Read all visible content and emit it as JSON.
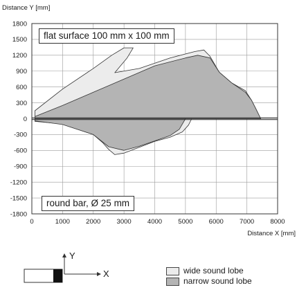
{
  "chart_data": {
    "type": "area",
    "ylabel": "Distance Y [mm]",
    "xlabel": "Distance X [mm]",
    "xlim": [
      0,
      8000
    ],
    "ylim": [
      -1800,
      1800
    ],
    "x_ticks": [
      0,
      1000,
      2000,
      3000,
      4000,
      5000,
      6000,
      7000,
      8000
    ],
    "y_ticks": [
      1800,
      1500,
      1200,
      900,
      600,
      300,
      0,
      -300,
      -600,
      -900,
      -1200,
      -1500,
      -1800
    ],
    "grid": true,
    "annotations": {
      "top": "flat surface 100 mm x 100 mm",
      "bottom": "round bar, Ø 25 mm"
    },
    "series": [
      {
        "name": "wide sound lobe",
        "color": "#ececec",
        "upper": [
          [
            100,
            150
          ],
          [
            1000,
            560
          ],
          [
            2000,
            950
          ],
          [
            2600,
            1200
          ],
          [
            3000,
            1340
          ],
          [
            3300,
            1340
          ],
          [
            3100,
            1150
          ],
          [
            2700,
            870
          ],
          [
            3500,
            950
          ],
          [
            4500,
            1150
          ],
          [
            5300,
            1270
          ],
          [
            5600,
            1300
          ],
          [
            5800,
            1180
          ],
          [
            6100,
            880
          ],
          [
            6500,
            680
          ],
          [
            6950,
            530
          ],
          [
            7150,
            350
          ],
          [
            7300,
            180
          ],
          [
            7450,
            0
          ]
        ],
        "lower": [
          [
            100,
            -50
          ],
          [
            1000,
            -100
          ],
          [
            2000,
            -300
          ],
          [
            2300,
            -450
          ],
          [
            2500,
            -580
          ],
          [
            2700,
            -680
          ],
          [
            3000,
            -650
          ],
          [
            3500,
            -540
          ],
          [
            4000,
            -430
          ],
          [
            4500,
            -350
          ],
          [
            4900,
            -250
          ],
          [
            5100,
            -120
          ],
          [
            5200,
            0
          ]
        ]
      },
      {
        "name": "narrow sound lobe",
        "color": "#b4b4b4",
        "upper": [
          [
            100,
            40
          ],
          [
            1000,
            250
          ],
          [
            2000,
            500
          ],
          [
            3000,
            750
          ],
          [
            4000,
            1000
          ],
          [
            5000,
            1150
          ],
          [
            5400,
            1200
          ],
          [
            5800,
            1150
          ],
          [
            6100,
            880
          ],
          [
            6500,
            680
          ],
          [
            6950,
            500
          ],
          [
            7150,
            350
          ],
          [
            7300,
            180
          ],
          [
            7450,
            0
          ]
        ],
        "lower": [
          [
            100,
            -40
          ],
          [
            1000,
            -110
          ],
          [
            2000,
            -300
          ],
          [
            2500,
            -530
          ],
          [
            3000,
            -600
          ],
          [
            3500,
            -520
          ],
          [
            4000,
            -420
          ],
          [
            4500,
            -320
          ],
          [
            4800,
            -200
          ],
          [
            5000,
            0
          ]
        ]
      }
    ]
  },
  "diagram": {
    "y_axis_label": "Y",
    "x_axis_label": "X"
  },
  "legend": {
    "wide": "wide sound lobe",
    "narrow": "narrow sound lobe"
  }
}
